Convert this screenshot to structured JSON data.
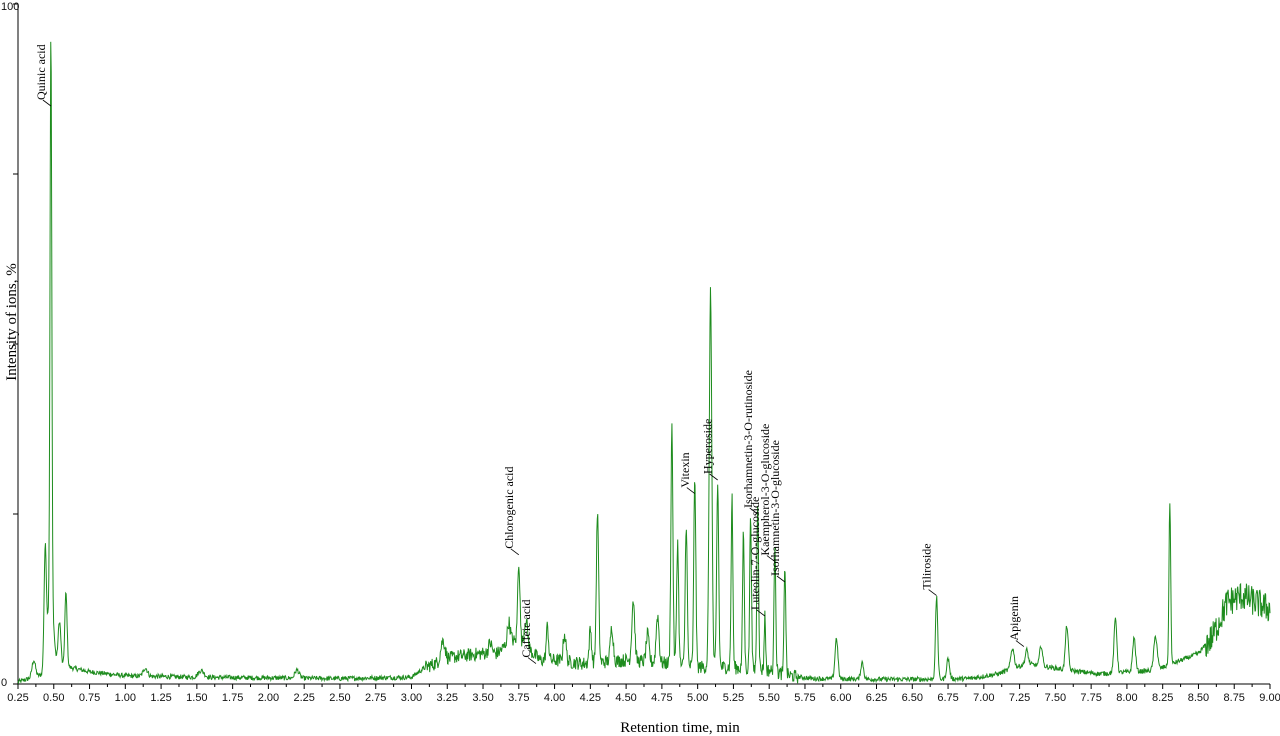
{
  "chart_data": {
    "type": "line",
    "xlabel": "Retention time, min",
    "ylabel": "Intensity of ions, %",
    "xlim": [
      0.25,
      9.0
    ],
    "ylim": [
      0,
      100
    ],
    "x_ticks": [
      "0.25",
      "0.50",
      "0.75",
      "1.00",
      "1.25",
      "1.50",
      "1.75",
      "2.00",
      "2.25",
      "2.50",
      "2.75",
      "3.00",
      "3.25",
      "3.50",
      "3.75",
      "4.00",
      "4.25",
      "4.50",
      "4.75",
      "5.00",
      "5.25",
      "5.50",
      "5.75",
      "6.00",
      "6.25",
      "6.50",
      "6.75",
      "7.00",
      "7.25",
      "7.50",
      "7.75",
      "8.00",
      "8.25",
      "8.50",
      "8.75",
      "9.00"
    ],
    "y_tick_labels": [
      {
        "value": 100,
        "label": "100"
      },
      {
        "value": 0,
        "label": "0"
      }
    ],
    "y_tick_marks": [
      0,
      25,
      50,
      75,
      100
    ],
    "grid": false,
    "line_color": "#1e8c1e",
    "baseline": [
      [
        0.25,
        0.3
      ],
      [
        0.6,
        2.5
      ],
      [
        0.75,
        1.8
      ],
      [
        1.0,
        1.2
      ],
      [
        1.5,
        1.0
      ],
      [
        2.0,
        0.9
      ],
      [
        2.5,
        0.8
      ],
      [
        3.0,
        1.0
      ],
      [
        3.1,
        2.5
      ],
      [
        3.3,
        4.0
      ],
      [
        3.5,
        4.5
      ],
      [
        3.6,
        4.5
      ],
      [
        3.7,
        6.5
      ],
      [
        3.8,
        5.5
      ],
      [
        3.9,
        3.5
      ],
      [
        4.0,
        3.5
      ],
      [
        4.2,
        3.0
      ],
      [
        4.5,
        3.5
      ],
      [
        4.8,
        3.0
      ],
      [
        5.0,
        2.5
      ],
      [
        5.2,
        2.5
      ],
      [
        5.5,
        2.0
      ],
      [
        5.65,
        1.2
      ],
      [
        5.8,
        0.8
      ],
      [
        6.2,
        0.7
      ],
      [
        6.6,
        0.7
      ],
      [
        6.9,
        0.8
      ],
      [
        7.1,
        1.5
      ],
      [
        7.3,
        3.0
      ],
      [
        7.6,
        2.0
      ],
      [
        7.8,
        1.5
      ],
      [
        8.2,
        2.0
      ],
      [
        8.5,
        4.5
      ],
      [
        8.6,
        7.0
      ],
      [
        8.7,
        12.0
      ],
      [
        8.8,
        13.0
      ],
      [
        9.0,
        11.0
      ]
    ],
    "peaks": [
      {
        "rt": 0.36,
        "h": 2.5,
        "w": 0.012
      },
      {
        "rt": 0.44,
        "h": 17,
        "w": 0.008
      },
      {
        "rt": 0.48,
        "h": 82,
        "w": 0.006
      },
      {
        "rt": 0.478,
        "h": 12,
        "w": 0.02
      },
      {
        "rt": 0.54,
        "h": 7,
        "w": 0.01
      },
      {
        "rt": 0.585,
        "h": 11,
        "w": 0.008
      },
      {
        "rt": 1.14,
        "h": 1.2,
        "w": 0.015
      },
      {
        "rt": 1.53,
        "h": 1.0,
        "w": 0.02
      },
      {
        "rt": 2.2,
        "h": 1.2,
        "w": 0.015
      },
      {
        "rt": 3.22,
        "h": 3,
        "w": 0.015
      },
      {
        "rt": 3.55,
        "h": 1.5,
        "w": 0.012
      },
      {
        "rt": 3.68,
        "h": 3,
        "w": 0.01
      },
      {
        "rt": 3.75,
        "h": 12,
        "w": 0.008
      },
      {
        "rt": 3.8,
        "h": 4,
        "w": 0.012
      },
      {
        "rt": 3.95,
        "h": 5,
        "w": 0.008
      },
      {
        "rt": 4.07,
        "h": 4,
        "w": 0.01
      },
      {
        "rt": 4.25,
        "h": 5,
        "w": 0.008
      },
      {
        "rt": 4.3,
        "h": 22,
        "w": 0.008
      },
      {
        "rt": 4.4,
        "h": 5,
        "w": 0.01
      },
      {
        "rt": 4.55,
        "h": 9,
        "w": 0.01
      },
      {
        "rt": 4.65,
        "h": 4,
        "w": 0.01
      },
      {
        "rt": 4.72,
        "h": 7,
        "w": 0.01
      },
      {
        "rt": 4.82,
        "h": 35,
        "w": 0.007
      },
      {
        "rt": 4.86,
        "h": 18,
        "w": 0.007
      },
      {
        "rt": 4.92,
        "h": 21,
        "w": 0.007
      },
      {
        "rt": 4.98,
        "h": 28,
        "w": 0.007
      },
      {
        "rt": 5.09,
        "h": 55,
        "w": 0.009
      },
      {
        "rt": 5.14,
        "h": 27,
        "w": 0.007
      },
      {
        "rt": 5.24,
        "h": 25,
        "w": 0.006
      },
      {
        "rt": 5.32,
        "h": 20,
        "w": 0.006
      },
      {
        "rt": 5.37,
        "h": 23,
        "w": 0.006
      },
      {
        "rt": 5.42,
        "h": 25,
        "w": 0.006
      },
      {
        "rt": 5.47,
        "h": 8,
        "w": 0.005
      },
      {
        "rt": 5.54,
        "h": 19,
        "w": 0.006
      },
      {
        "rt": 5.61,
        "h": 16,
        "w": 0.006
      },
      {
        "rt": 5.97,
        "h": 6,
        "w": 0.01
      },
      {
        "rt": 6.15,
        "h": 2.5,
        "w": 0.01
      },
      {
        "rt": 6.67,
        "h": 12,
        "w": 0.008
      },
      {
        "rt": 6.75,
        "h": 3,
        "w": 0.01
      },
      {
        "rt": 7.2,
        "h": 3,
        "w": 0.012
      },
      {
        "rt": 7.3,
        "h": 2,
        "w": 0.01
      },
      {
        "rt": 7.4,
        "h": 3,
        "w": 0.01
      },
      {
        "rt": 7.58,
        "h": 6.5,
        "w": 0.01
      },
      {
        "rt": 7.92,
        "h": 8,
        "w": 0.01
      },
      {
        "rt": 8.05,
        "h": 5,
        "w": 0.01
      },
      {
        "rt": 8.2,
        "h": 5,
        "w": 0.012
      },
      {
        "rt": 8.3,
        "h": 24,
        "w": 0.006
      }
    ],
    "annotations": [
      {
        "label": "Quinic acid",
        "x": 0.48,
        "y": 85
      },
      {
        "label": "Chlorogenic acid",
        "x": 3.75,
        "y": 19
      },
      {
        "label": "Caffeic acid",
        "x": 3.87,
        "y": 3.0
      },
      {
        "label": "Vitexin",
        "x": 4.98,
        "y": 28
      },
      {
        "label": "Hyperoside",
        "x": 5.14,
        "y": 30
      },
      {
        "label": "Isorhamnetin-3-O-rutinoside",
        "x": 5.42,
        "y": 25
      },
      {
        "label": "Luteolin-7-O-glucoside",
        "x": 5.47,
        "y": 10
      },
      {
        "label": "Kaempherol-3-O-glucoside",
        "x": 5.54,
        "y": 18
      },
      {
        "label": "Isorhamnetin-3-O-glucoside",
        "x": 5.61,
        "y": 15
      },
      {
        "label": "Tiliroside",
        "x": 6.67,
        "y": 13
      },
      {
        "label": "Apigenin",
        "x": 7.28,
        "y": 5.5
      }
    ]
  }
}
